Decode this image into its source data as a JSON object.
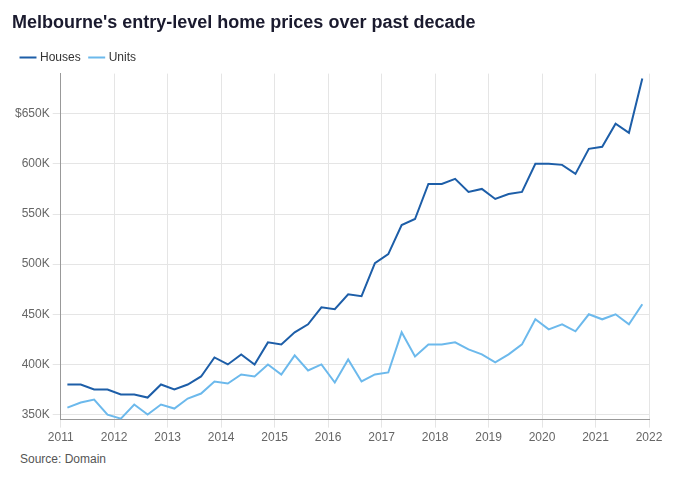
{
  "chart_data": {
    "type": "line",
    "title": "Melbourne's entry-level home prices over past decade",
    "source": "Source: Domain",
    "x": [
      2011.125,
      2011.375,
      2011.625,
      2011.875,
      2012.125,
      2012.375,
      2012.625,
      2012.875,
      2013.125,
      2013.375,
      2013.625,
      2013.875,
      2014.125,
      2014.375,
      2014.625,
      2014.875,
      2015.125,
      2015.375,
      2015.625,
      2015.875,
      2016.125,
      2016.375,
      2016.625,
      2016.875,
      2017.125,
      2017.375,
      2017.625,
      2017.875,
      2018.125,
      2018.375,
      2018.625,
      2018.875,
      2019.125,
      2019.375,
      2019.625,
      2019.875,
      2020.125,
      2020.375,
      2020.625,
      2020.875,
      2021.125,
      2021.375,
      2021.625,
      2021.875
    ],
    "series": [
      {
        "name": "Houses",
        "color": "#1d5ea8",
        "values": [
          380000,
          380000,
          375000,
          375000,
          370000,
          370000,
          367000,
          380000,
          375000,
          380000,
          388000,
          407000,
          400000,
          410000,
          400000,
          422000,
          420000,
          432000,
          440000,
          457000,
          455000,
          470000,
          468000,
          501000,
          510000,
          539000,
          545000,
          580000,
          580000,
          585000,
          572000,
          575000,
          565000,
          570000,
          572000,
          600000,
          600000,
          599000,
          590000,
          615000,
          617000,
          640000,
          631000,
          685000
        ]
      },
      {
        "name": "Units",
        "color": "#6cb9ec",
        "values": [
          357000,
          362000,
          365000,
          350000,
          346000,
          360000,
          350000,
          360000,
          356000,
          366000,
          371000,
          383000,
          381000,
          390000,
          388000,
          400000,
          390000,
          409000,
          394000,
          400000,
          382000,
          405000,
          383000,
          390000,
          392000,
          432000,
          408000,
          420000,
          420000,
          422000,
          415000,
          410000,
          402000,
          410000,
          420000,
          445000,
          435000,
          440000,
          433000,
          450000,
          445000,
          450000,
          440000,
          460000
        ]
      }
    ],
    "xlim": [
      2011,
      2022
    ],
    "xticks": [
      2011,
      2012,
      2013,
      2014,
      2015,
      2016,
      2017,
      2018,
      2019,
      2020,
      2021,
      2022
    ],
    "ylim": [
      345000,
      690000
    ],
    "yticks": [
      {
        "value": 350000,
        "label": "350K"
      },
      {
        "value": 400000,
        "label": "400K"
      },
      {
        "value": 450000,
        "label": "450K"
      },
      {
        "value": 500000,
        "label": "500K"
      },
      {
        "value": 550000,
        "label": "550K"
      },
      {
        "value": 600000,
        "label": "600K"
      },
      {
        "value": 650000,
        "label": "$650K"
      }
    ],
    "grid": true,
    "legend": "top-left"
  }
}
